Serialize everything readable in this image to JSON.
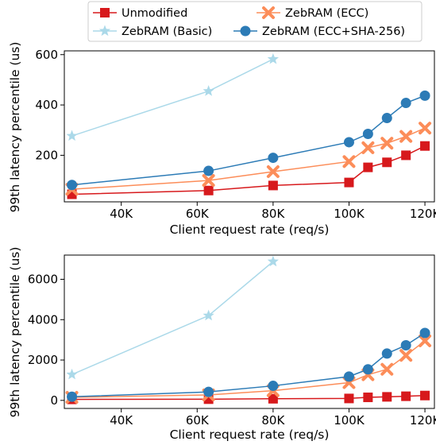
{
  "colors": {
    "unmodified": "#d7191c",
    "ecc": "#fc8d59",
    "basic": "#abd9e9",
    "ecc_sha": "#2c7bb6"
  },
  "legend": {
    "items": [
      {
        "key": "unmodified",
        "label": "Unmodified",
        "marker": "square"
      },
      {
        "key": "ecc",
        "label": "ZebRAM (ECC)",
        "marker": "x"
      },
      {
        "key": "basic",
        "label": "ZebRAM (Basic)",
        "marker": "star"
      },
      {
        "key": "ecc_sha",
        "label": "ZebRAM (ECC+SHA-256)",
        "marker": "circle"
      }
    ]
  },
  "chart_data": [
    {
      "type": "line",
      "xlabel": "Client request rate (req/s)",
      "ylabel": "99th latency percentile (us)",
      "xlim": [
        25000,
        122500
      ],
      "ylim": [
        15,
        615
      ],
      "xticks": [
        40000,
        60000,
        80000,
        100000,
        120000
      ],
      "xtick_labels": [
        "40K",
        "60K",
        "80K",
        "100K",
        "120K"
      ],
      "yticks": [
        200,
        400,
        600
      ],
      "ytick_labels": [
        "200",
        "400",
        "600"
      ],
      "series": [
        {
          "key": "unmodified",
          "name": "Unmodified",
          "marker": "square",
          "x": [
            27000,
            63000,
            80000,
            100000,
            105000,
            110000,
            115000,
            120000
          ],
          "y": [
            45,
            60,
            80,
            92,
            152,
            172,
            200,
            237
          ]
        },
        {
          "key": "ecc",
          "name": "ZebRAM (ECC)",
          "marker": "x",
          "x": [
            27000,
            63000,
            80000,
            100000,
            105000,
            110000,
            115000,
            120000
          ],
          "y": [
            65,
            100,
            135,
            175,
            230,
            248,
            275,
            308
          ]
        },
        {
          "key": "basic",
          "name": "ZebRAM (Basic)",
          "marker": "star",
          "x": [
            27000,
            63000,
            80000
          ],
          "y": [
            277,
            455,
            582
          ]
        },
        {
          "key": "ecc_sha",
          "name": "ZebRAM (ECC+SHA-256)",
          "marker": "circle",
          "x": [
            27000,
            63000,
            80000,
            100000,
            105000,
            110000,
            115000,
            120000
          ],
          "y": [
            82,
            138,
            190,
            252,
            285,
            348,
            408,
            437
          ]
        }
      ]
    },
    {
      "type": "line",
      "xlabel": "Client request rate (req/s)",
      "ylabel": "99th latency percentile (us)",
      "xlim": [
        25000,
        122500
      ],
      "ylim": [
        -400,
        7200
      ],
      "xticks": [
        40000,
        60000,
        80000,
        100000,
        120000
      ],
      "xtick_labels": [
        "40K",
        "60K",
        "80K",
        "100K",
        "120K"
      ],
      "yticks": [
        0,
        2000,
        4000,
        6000
      ],
      "ytick_labels": [
        "0",
        "2000",
        "4000",
        "6000"
      ],
      "series": [
        {
          "key": "unmodified",
          "name": "Unmodified",
          "marker": "square",
          "x": [
            27000,
            63000,
            80000,
            100000,
            105000,
            110000,
            115000,
            120000
          ],
          "y": [
            50,
            60,
            80,
            95,
            150,
            175,
            205,
            240
          ]
        },
        {
          "key": "ecc",
          "name": "ZebRAM (ECC)",
          "marker": "x",
          "x": [
            27000,
            63000,
            80000,
            100000,
            105000,
            110000,
            115000,
            120000
          ],
          "y": [
            150,
            270,
            480,
            880,
            1270,
            1540,
            2230,
            2950
          ]
        },
        {
          "key": "basic",
          "name": "ZebRAM (Basic)",
          "marker": "star",
          "x": [
            27000,
            63000,
            80000
          ],
          "y": [
            1280,
            4200,
            6880
          ]
        },
        {
          "key": "ecc_sha",
          "name": "ZebRAM (ECC+SHA-256)",
          "marker": "circle",
          "x": [
            27000,
            63000,
            80000,
            100000,
            105000,
            110000,
            115000,
            120000
          ],
          "y": [
            180,
            420,
            720,
            1180,
            1540,
            2320,
            2730,
            3340
          ]
        }
      ]
    }
  ]
}
